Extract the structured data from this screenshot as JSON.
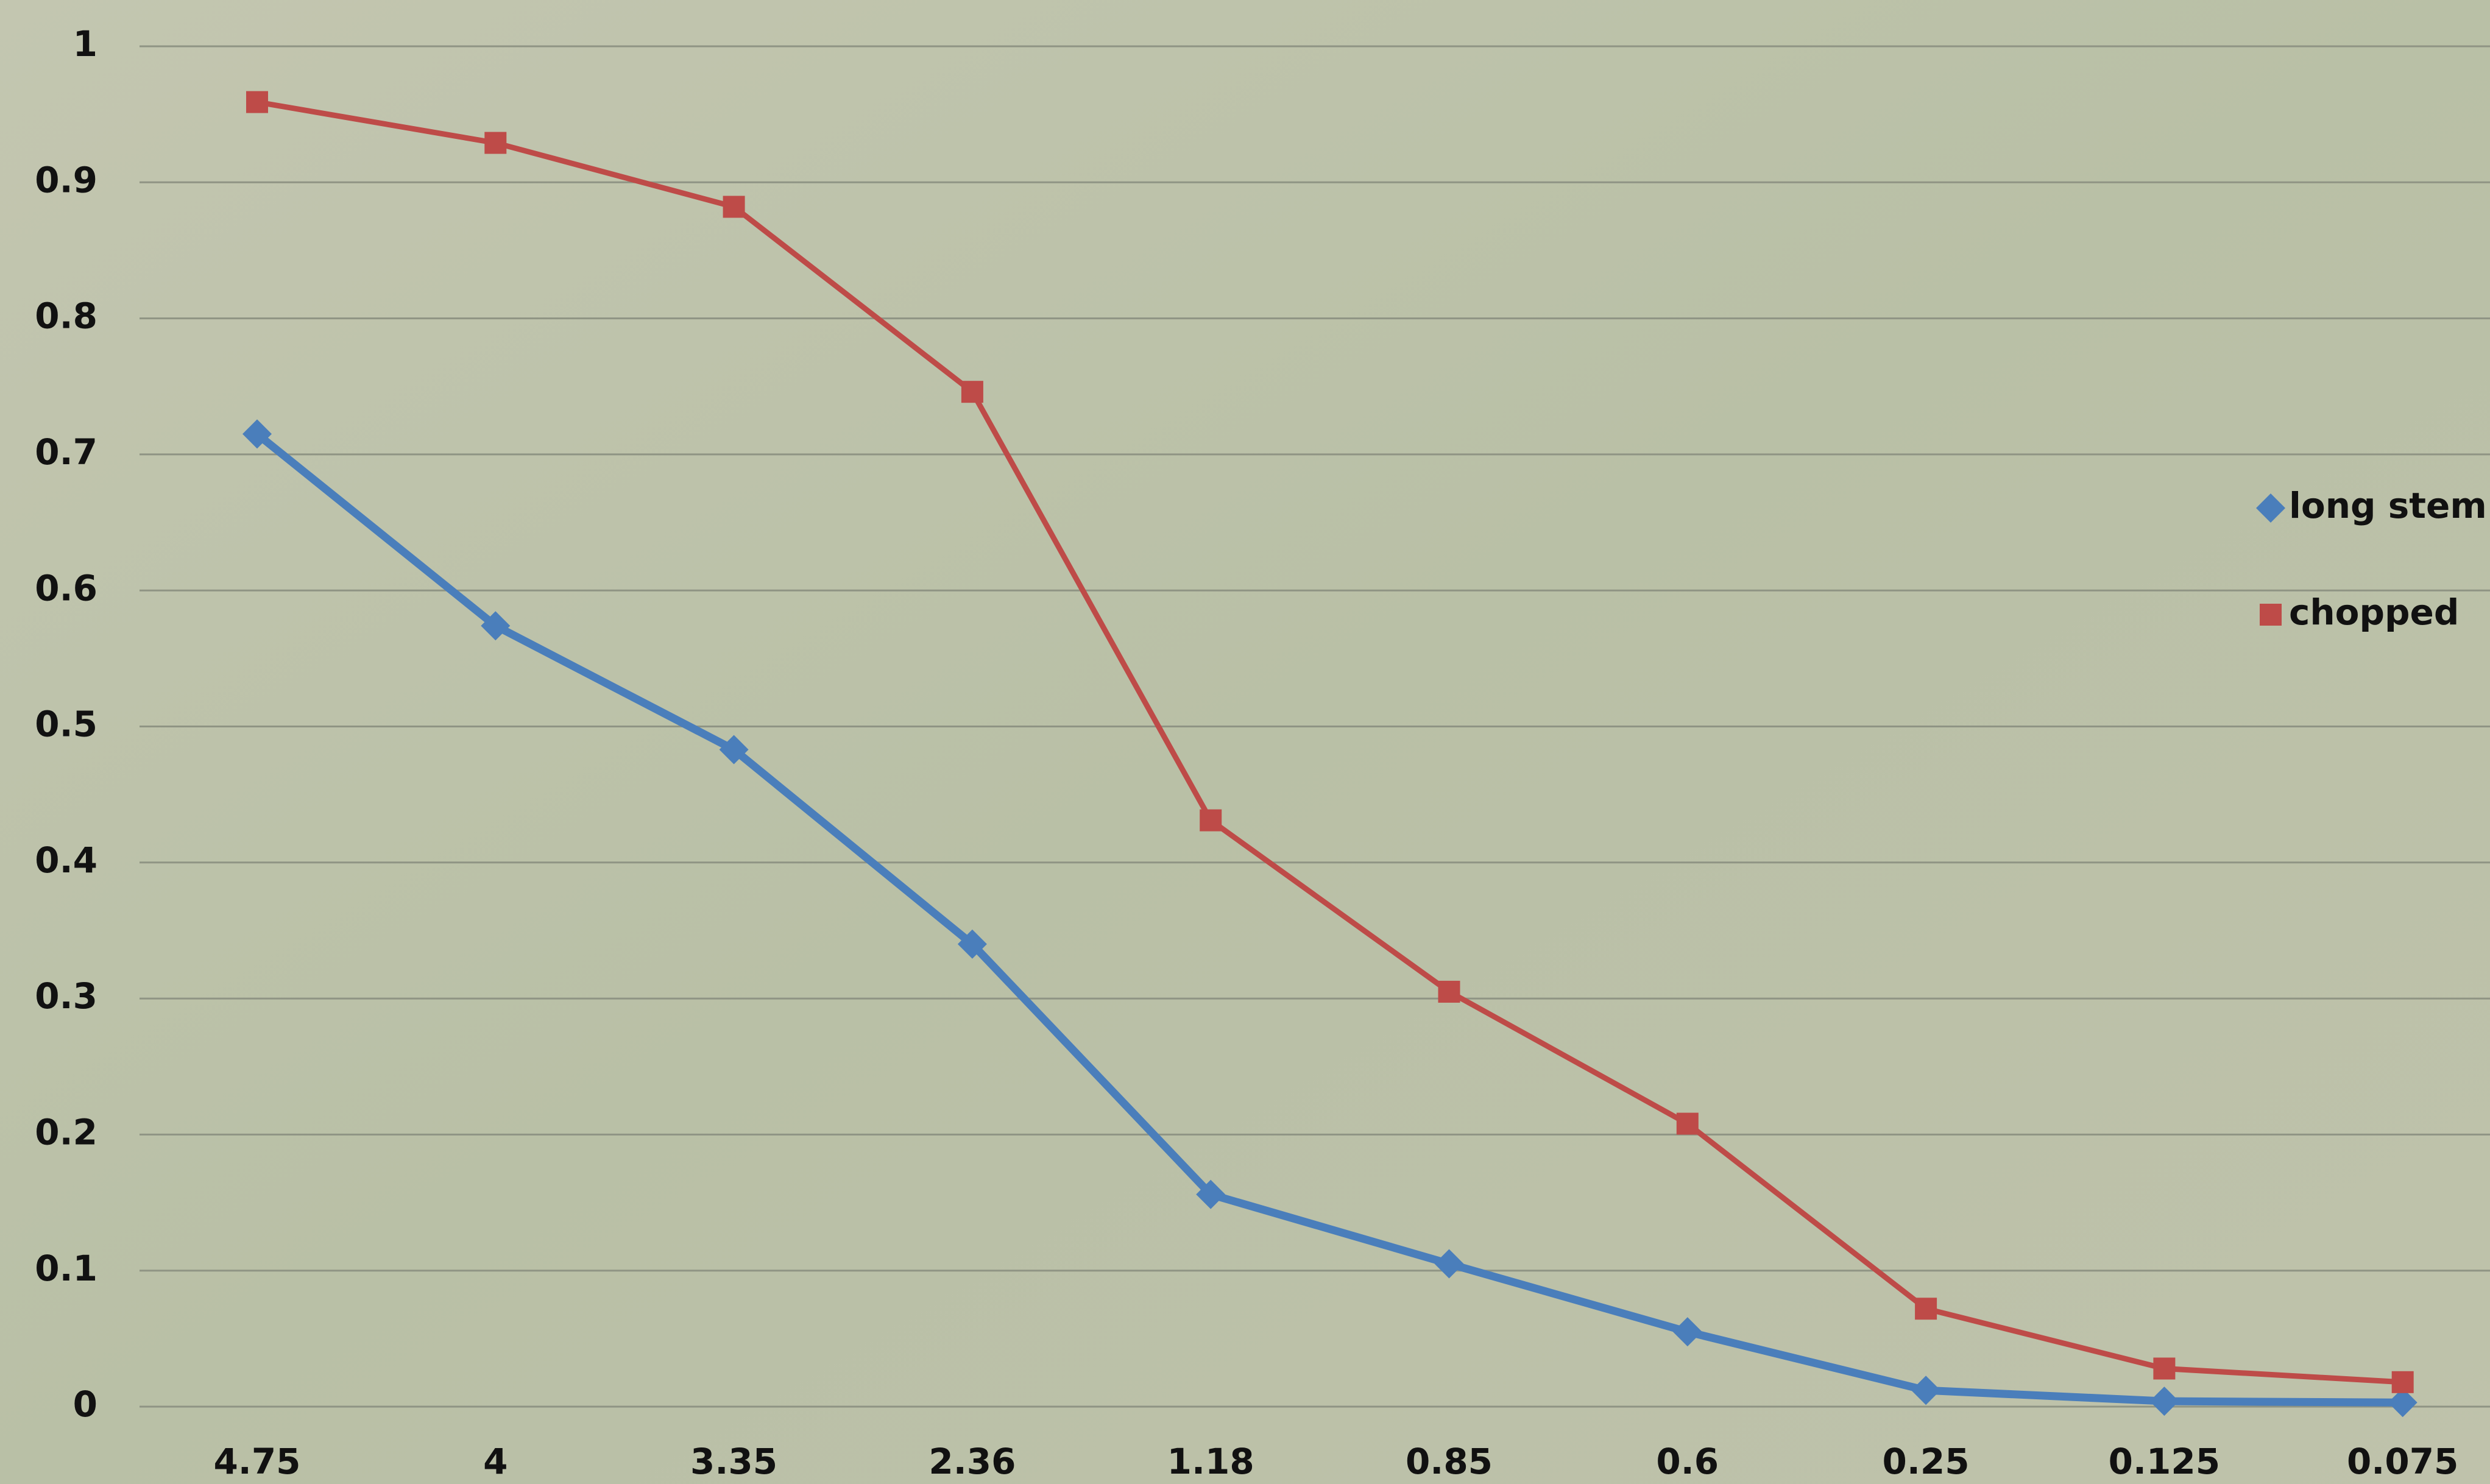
{
  "chart_data": {
    "type": "line",
    "categories": [
      "4.75",
      "4",
      "3.35",
      "2.36",
      "1.18",
      "0.85",
      "0.6",
      "0.25",
      "0.125",
      "0.075"
    ],
    "series": [
      {
        "name": "long stem",
        "color": "#4a7ebb",
        "values": [
          0.715,
          0.574,
          0.483,
          0.34,
          0.156,
          0.105,
          0.055,
          0.012,
          0.004,
          0.003
        ]
      },
      {
        "name": "chopped",
        "color": "#be4b48",
        "values": [
          0.959,
          0.929,
          0.882,
          0.746,
          0.431,
          0.305,
          0.208,
          0.072,
          0.028,
          0.018
        ]
      }
    ],
    "ylim": [
      0,
      1
    ],
    "yticks": [
      0,
      0.1,
      0.2,
      0.3,
      0.4,
      0.5,
      0.6,
      0.7,
      0.8,
      0.9,
      1
    ],
    "grid": true,
    "legend": "right"
  }
}
